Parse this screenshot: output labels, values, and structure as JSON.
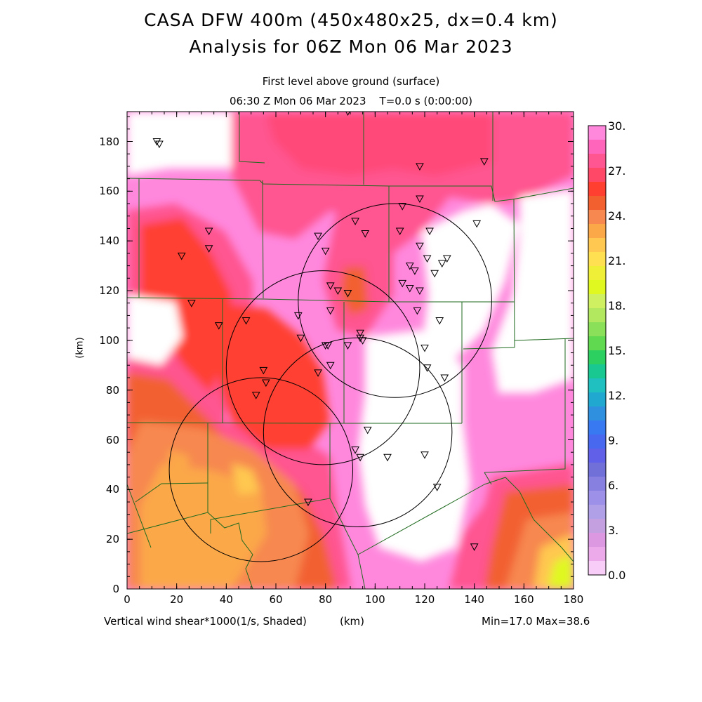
{
  "header": {
    "title_line1": "CASA DFW 400m (450x480x25, dx=0.4 km)",
    "title_line2": "Analysis for 06Z Mon 06 Mar 2023",
    "subtitle_level": "First level above ground (surface)",
    "subtitle_time": "06:30 Z Mon 06 Mar 2023    T=0.0 s (0:00:00)"
  },
  "axes": {
    "x_ticks": [
      "0",
      "20",
      "40",
      "60",
      "80",
      "100",
      "120",
      "140",
      "160",
      "180"
    ],
    "y_ticks": [
      "0",
      "20",
      "40",
      "60",
      "80",
      "100",
      "120",
      "140",
      "160",
      "180"
    ],
    "y_label": "(km)",
    "x_unit": "(km)",
    "x_range_km": [
      0,
      180
    ],
    "y_range_km": [
      0,
      192
    ]
  },
  "footer": {
    "field_label": "Vertical wind shear*1000(1/s, Shaded)",
    "minmax": "Min=17.0 Max=38.6"
  },
  "colorbar": {
    "labels": [
      "30.",
      "27.",
      "24.",
      "21.",
      "18.",
      "15.",
      "12.",
      "9.",
      "6.",
      "3.",
      "0.0"
    ],
    "colors": [
      "#ff88dd",
      "#ff66bb",
      "#ff5590",
      "#ff4868",
      "#ff4030",
      "#f26030",
      "#f78850",
      "#fba848",
      "#ffc850",
      "#ffe050",
      "#f0ef38",
      "#e0f820",
      "#cff060",
      "#b2e860",
      "#8ae058",
      "#60d850",
      "#2cd060",
      "#18c890",
      "#20c0c0",
      "#20a8d0",
      "#3090e0",
      "#3878f0",
      "#4868f0",
      "#6060e8",
      "#7070d8",
      "#8880e0",
      "#9c90e8",
      "#b0a0e8",
      "#c4a0e0",
      "#dc98e0",
      "#ecaaea",
      "#f8cef8"
    ]
  },
  "range_rings": [
    {
      "center_km": [
        54,
        48
      ],
      "radius_km": 37
    },
    {
      "center_km": [
        79,
        89
      ],
      "radius_km": 39
    },
    {
      "center_km": [
        93,
        63
      ],
      "radius_km": 38
    },
    {
      "center_km": [
        108,
        116
      ],
      "radius_km": 39
    }
  ],
  "stations_km": [
    [
      12,
      180
    ],
    [
      13,
      179
    ],
    [
      89,
      192
    ],
    [
      118,
      170
    ],
    [
      144,
      172
    ],
    [
      118,
      157
    ],
    [
      111,
      154
    ],
    [
      141,
      147
    ],
    [
      33,
      144
    ],
    [
      92,
      148
    ],
    [
      96,
      143
    ],
    [
      110,
      144
    ],
    [
      77,
      142
    ],
    [
      122,
      144
    ],
    [
      22,
      134
    ],
    [
      33,
      137
    ],
    [
      80,
      136
    ],
    [
      118,
      138
    ],
    [
      121,
      133
    ],
    [
      129,
      133
    ],
    [
      127,
      131
    ],
    [
      114,
      130
    ],
    [
      116,
      128
    ],
    [
      124,
      127
    ],
    [
      82,
      122
    ],
    [
      85,
      120
    ],
    [
      89,
      119
    ],
    [
      111,
      123
    ],
    [
      114,
      121
    ],
    [
      118,
      120
    ],
    [
      26,
      115
    ],
    [
      82,
      112
    ],
    [
      117,
      112
    ],
    [
      37,
      106
    ],
    [
      48,
      108
    ],
    [
      69,
      110
    ],
    [
      126,
      108
    ],
    [
      70,
      101
    ],
    [
      94,
      103
    ],
    [
      94,
      101
    ],
    [
      95,
      100
    ],
    [
      80,
      98
    ],
    [
      81,
      98
    ],
    [
      89,
      98
    ],
    [
      120,
      97
    ],
    [
      82,
      90
    ],
    [
      121,
      89
    ],
    [
      128,
      85
    ],
    [
      55,
      88
    ],
    [
      77,
      87
    ],
    [
      56,
      83
    ],
    [
      52,
      78
    ],
    [
      97,
      64
    ],
    [
      92,
      56
    ],
    [
      94,
      53
    ],
    [
      105,
      53
    ],
    [
      120,
      54
    ],
    [
      125,
      41
    ],
    [
      73,
      35
    ],
    [
      140,
      17
    ]
  ]
}
